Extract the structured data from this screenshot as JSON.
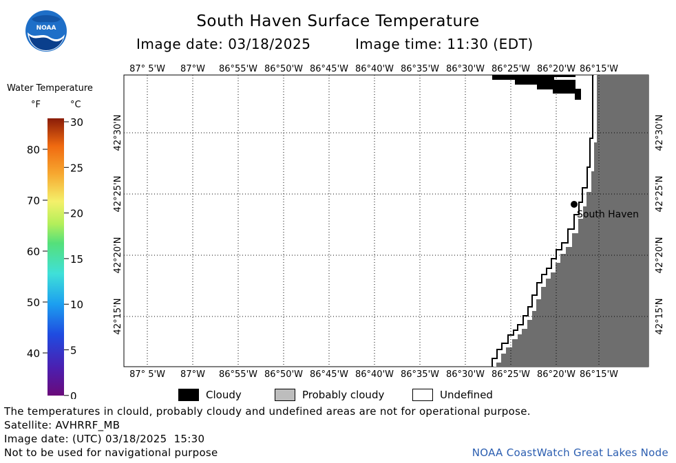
{
  "header": {
    "title": "South Haven Surface Temperature",
    "image_date_label": "Image date: 03/18/2025",
    "image_time_label": "Image time: 11:30 (EDT)",
    "logo_text": "NOAA"
  },
  "color_scale": {
    "title": "Water Temperature",
    "unit_f": "°F",
    "unit_c": "°C",
    "fahrenheit_ticks": [
      "80",
      "70",
      "60",
      "50",
      "40"
    ],
    "celsius_ticks": [
      "30",
      "25",
      "20",
      "15",
      "10",
      "5",
      "0"
    ]
  },
  "map": {
    "top_lon_labels": [
      "87° 5'W",
      "87°W",
      "86°55'W",
      "86°50'W",
      "86°45'W",
      "86°40'W",
      "86°35'W",
      "86°30'W",
      "86°25'W",
      "86°20'W",
      "86°15'W"
    ],
    "bottom_lon_labels": [
      "87° 5'W",
      "87°W",
      "86°55'W",
      "86°50'W",
      "86°45'W",
      "86°40'W",
      "86°35'W",
      "86°30'W",
      "86°25'W",
      "86°20'W",
      "86°15'W"
    ],
    "lat_labels": [
      "42°30'N",
      "42°25'N",
      "42°20'N",
      "42°15'N"
    ],
    "place_label": "South Haven",
    "land_color": "#6e6e6e",
    "cloud_color": "#000000"
  },
  "legend": {
    "cloudy": "Cloudy",
    "probably_cloudy": "Probably cloudy",
    "undefined": "Undefined"
  },
  "footer": {
    "disclaimer": "The temperatures in clould, probably cloudy and undefined areas are not for operational purpose.",
    "satellite": "Satellite: AVHRRF_MB",
    "utc_date": "Image date: (UTC) 03/18/2025  15:30",
    "nav_note": "Not to be used for navigational purpose",
    "credit": "NOAA CoastWatch Great Lakes Node"
  }
}
